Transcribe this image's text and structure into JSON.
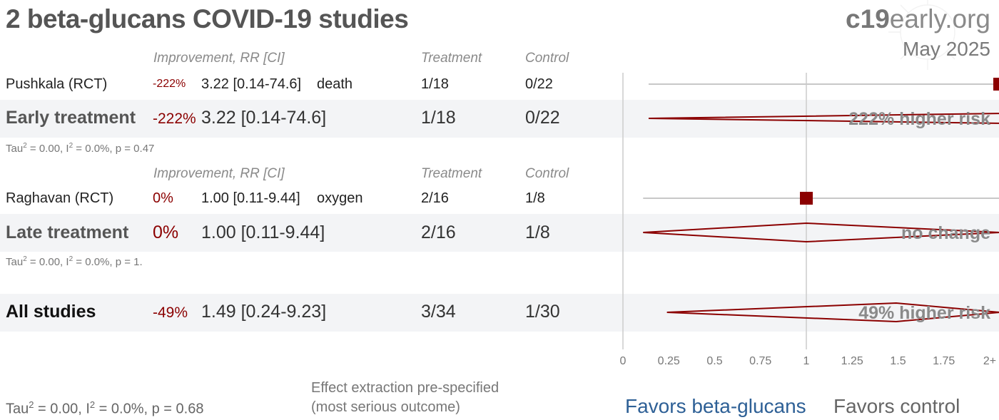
{
  "header": {
    "title": "2 beta-glucans COVID-19 studies",
    "brand_bold": "c19",
    "brand_rest": "early.org",
    "date": "May 2025"
  },
  "columns": {
    "improvement": "Improvement, RR [CI]",
    "treatment": "Treatment",
    "control": "Control"
  },
  "chart_data": {
    "type": "forest",
    "x_axis": {
      "min": 0,
      "max": 2,
      "ticks": [
        0,
        0.25,
        0.5,
        0.75,
        1,
        1.25,
        1.5,
        1.75,
        2
      ],
      "tick_labels": [
        "0",
        "0.25",
        "0.5",
        "0.75",
        "1",
        "1.25",
        "1.5",
        "1.75",
        "2+"
      ],
      "reference_line": 1
    },
    "groups": [
      {
        "name": "Early treatment",
        "studies": [
          {
            "name": "Pushkala (RCT)",
            "improvement": "-222%",
            "rr_text": "3.22 [0.14-74.6]",
            "outcome": "death",
            "treatment": "1/18",
            "control": "0/22",
            "rr": 3.22,
            "ci_low": 0.14,
            "ci_high": 74.6
          }
        ],
        "summary": {
          "improvement": "-222%",
          "rr_text": "3.22 [0.14-74.6]",
          "treatment": "1/18",
          "control": "0/22",
          "rr": 3.22,
          "ci_low": 0.14,
          "ci_high": 74.6,
          "label": "222% higher risk"
        },
        "stats": {
          "tau": "Tau",
          "i": ", I",
          "rest1": " = 0.00",
          "rest2": " = 0.0%, p = 0.47"
        }
      },
      {
        "name": "Late treatment",
        "studies": [
          {
            "name": "Raghavan (RCT)",
            "improvement": "0%",
            "rr_text": "1.00 [0.11-9.44]",
            "outcome": "oxygen",
            "treatment": "2/16",
            "control": "1/8",
            "rr": 1.0,
            "ci_low": 0.11,
            "ci_high": 9.44
          }
        ],
        "summary": {
          "improvement": "0%",
          "rr_text": "1.00 [0.11-9.44]",
          "treatment": "2/16",
          "control": "1/8",
          "rr": 1.0,
          "ci_low": 0.11,
          "ci_high": 9.44,
          "label": "no change"
        },
        "stats": {
          "tau": "Tau",
          "i": ", I",
          "rest1": " = 0.00",
          "rest2": " = 0.0%, p = 1."
        }
      }
    ],
    "overall": {
      "name": "All studies",
      "improvement": "-49%",
      "rr_text": "1.49 [0.24-9.23]",
      "treatment": "3/34",
      "control": "1/30",
      "rr": 1.49,
      "ci_low": 0.24,
      "ci_high": 9.23,
      "label": "49% higher risk"
    }
  },
  "footer": {
    "stats": {
      "tau": "Tau",
      "i": ", I",
      "rest1": " = 0.00",
      "rest2": " = 0.0%, p = 0.68"
    },
    "note_line1": "Effect extraction pre-specified",
    "note_line2": "(most serious outcome)",
    "favors_left": "Favors beta-glucans",
    "favors_right": "Favors control"
  },
  "colors": {
    "marker": "#8b0000",
    "favors_treatment": "#2e6096",
    "band": "#f3f4f6"
  }
}
